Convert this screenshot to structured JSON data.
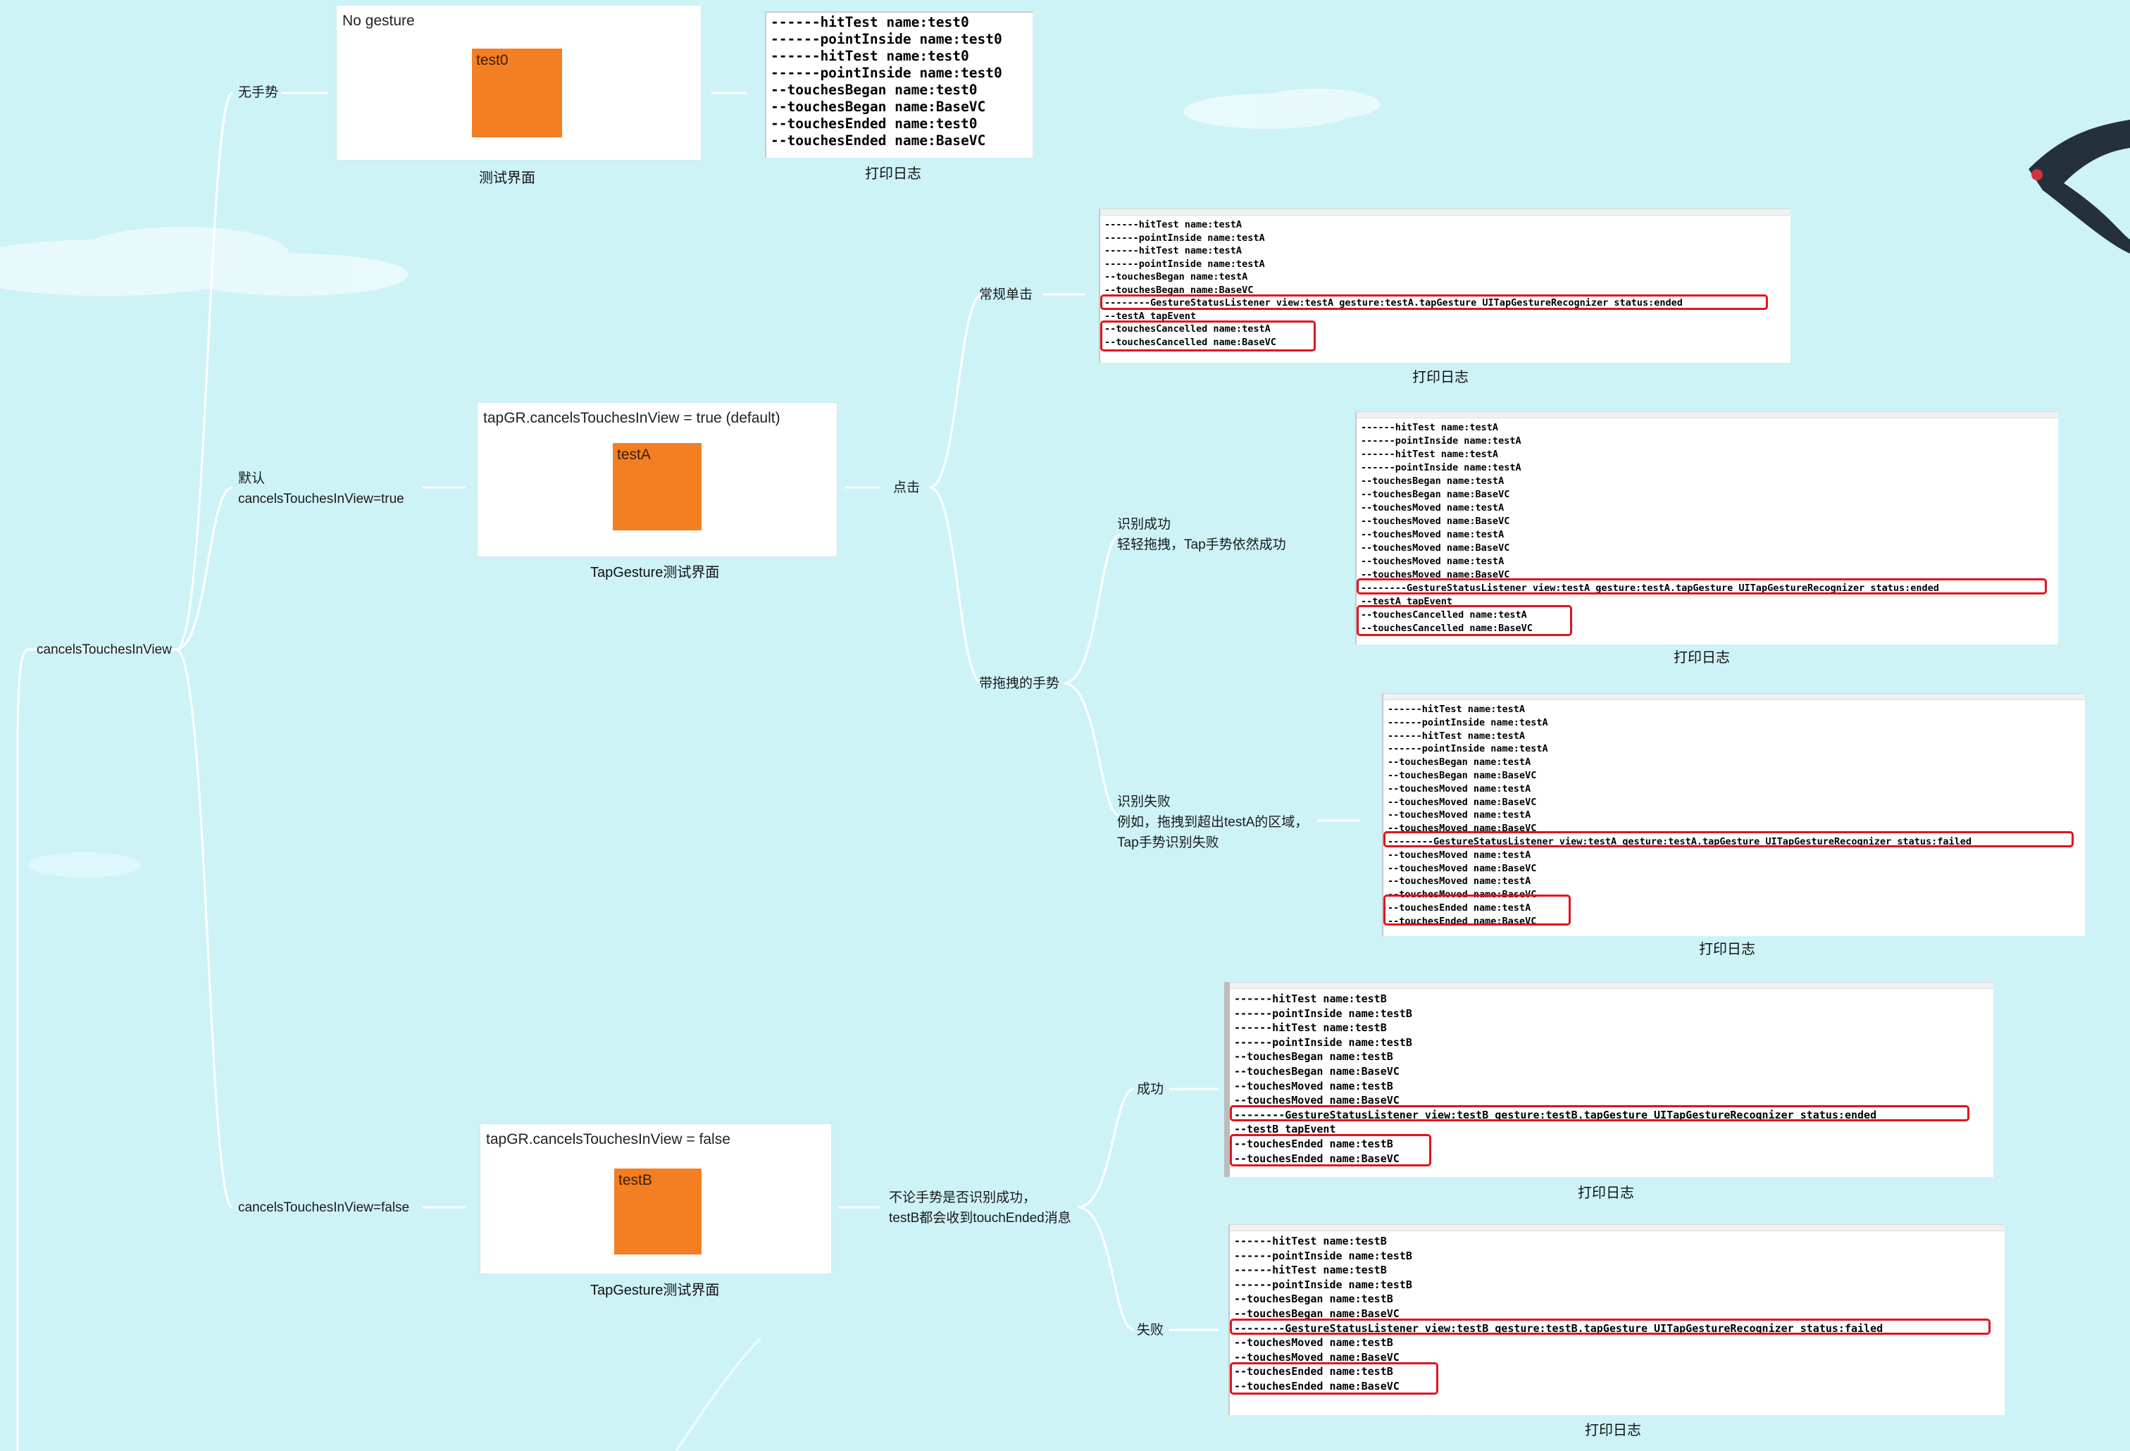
{
  "root": {
    "label": "cancelsTouchesInView"
  },
  "no_gesture": {
    "branch_label": "无手势",
    "card_title": "No gesture",
    "view_name": "test0",
    "card_caption": "测试界面",
    "log_caption": "打印日志",
    "log_lines": [
      "------hitTest name:test0",
      "------pointInside name:test0",
      "------hitTest name:test0",
      "------pointInside name:test0",
      "--touchesBegan name:test0",
      "--touchesBegan name:BaseVC",
      "--touchesEnded name:test0",
      "--touchesEnded name:BaseVC"
    ]
  },
  "default_true": {
    "branch_label_line1": "默认",
    "branch_label_line2": "cancelsTouchesInView=true",
    "card_title": "tapGR.cancelsTouchesInView = true (default)",
    "view_name": "testA",
    "card_caption": "TapGesture测试界面",
    "tap_label": "点击",
    "normal_tap": {
      "label": "常规单击",
      "log_caption": "打印日志",
      "log_lines": [
        "------hitTest name:testA",
        "------pointInside name:testA",
        "------hitTest name:testA",
        "------pointInside name:testA",
        "--touchesBegan name:testA",
        "--touchesBegan name:BaseVC",
        "--------GestureStatusListener view:testA gesture:testA.tapGesture UITapGestureRecognizer status:ended",
        "--testA tapEvent",
        "--touchesCancelled name:testA",
        "--touchesCancelled name:BaseVC"
      ]
    },
    "drag_tap": {
      "label": "带拖拽的手势",
      "success": {
        "label_line1": "识别成功",
        "label_line2": "轻轻拖拽，Tap手势依然成功",
        "log_caption": "打印日志",
        "log_lines": [
          "------hitTest name:testA",
          "------pointInside name:testA",
          "------hitTest name:testA",
          "------pointInside name:testA",
          "--touchesBegan name:testA",
          "--touchesBegan name:BaseVC",
          "--touchesMoved name:testA",
          "--touchesMoved name:BaseVC",
          "--touchesMoved name:testA",
          "--touchesMoved name:BaseVC",
          "--touchesMoved name:testA",
          "--touchesMoved name:BaseVC",
          "--------GestureStatusListener view:testA gesture:testA.tapGesture UITapGestureRecognizer status:ended",
          "--testA tapEvent",
          "--touchesCancelled name:testA",
          "--touchesCancelled name:BaseVC"
        ]
      },
      "failure": {
        "label_line1": "识别失败",
        "label_line2": "例如，拖拽到超出testA的区域，",
        "label_line3": "Tap手势识别失败",
        "log_caption": "打印日志",
        "log_lines": [
          "------hitTest name:testA",
          "------pointInside name:testA",
          "------hitTest name:testA",
          "------pointInside name:testA",
          "--touchesBegan name:testA",
          "--touchesBegan name:BaseVC",
          "--touchesMoved name:testA",
          "--touchesMoved name:BaseVC",
          "--touchesMoved name:testA",
          "--touchesMoved name:BaseVC",
          "--------GestureStatusListener view:testA gesture:testA.tapGesture UITapGestureRecognizer status:failed",
          "--touchesMoved name:testA",
          "--touchesMoved name:BaseVC",
          "--touchesMoved name:testA",
          "--touchesMoved name:BaseVC",
          "--touchesEnded name:testA",
          "--touchesEnded name:BaseVC"
        ]
      }
    }
  },
  "false_branch": {
    "branch_label": "cancelsTouchesInView=false",
    "card_title": "tapGR.cancelsTouchesInView = false",
    "view_name": "testB",
    "card_caption": "TapGesture测试界面",
    "summary_line1": "不论手势是否识别成功，",
    "summary_line2": "testB都会收到touchEnded消息",
    "success": {
      "label": "成功",
      "log_caption": "打印日志",
      "log_lines": [
        "------hitTest name:testB",
        "------pointInside name:testB",
        "------hitTest name:testB",
        "------pointInside name:testB",
        "--touchesBegan name:testB",
        "--touchesBegan name:BaseVC",
        "--touchesMoved name:testB",
        "--touchesMoved name:BaseVC",
        "--------GestureStatusListener view:testB gesture:testB.tapGesture UITapGestureRecognizer status:ended",
        "--testB tapEvent",
        "--touchesEnded name:testB",
        "--touchesEnded name:BaseVC"
      ]
    },
    "failure": {
      "label": "失败",
      "log_caption": "打印日志",
      "log_lines": [
        "------hitTest name:testB",
        "------pointInside name:testB",
        "------hitTest name:testB",
        "------pointInside name:testB",
        "--touchesBegan name:testB",
        "--touchesBegan name:BaseVC",
        "--------GestureStatusListener view:testB gesture:testB.tapGesture UITapGestureRecognizer status:failed",
        "--touchesMoved name:testB",
        "--touchesMoved name:BaseVC",
        "--touchesEnded name:testB",
        "--touchesEnded name:BaseVC"
      ]
    }
  },
  "colors": {
    "background": "#cdf3f7",
    "connector": "#ffffff",
    "view_fill": "#f37f22",
    "highlight": "#e0141e"
  },
  "decorations": [
    "cloud-shape",
    "cloud-shape",
    "cloud-shape",
    "swallow-bird-icon"
  ]
}
